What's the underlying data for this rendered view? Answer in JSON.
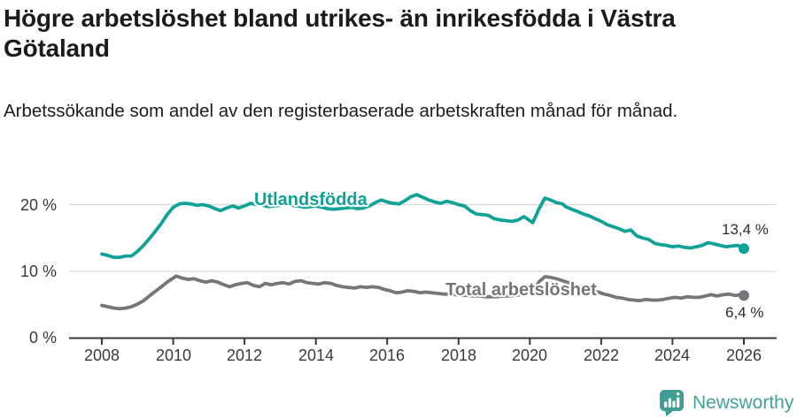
{
  "header": {
    "title": "Högre arbetslöshet bland utrikes- än inrikesfödda i Västra Götaland",
    "subtitle": "Arbetssökande som andel av den registerbaserade arbetskraften månad för månad."
  },
  "footer": {
    "brand": "Newsworthy",
    "brand_color": "#45a09a",
    "logo_icon": "bar-chart-speech-bubble-icon"
  },
  "chart_data": {
    "type": "line",
    "title": "Högre arbetslöshet bland utrikes- än inrikesfödda i Västra Götaland",
    "subtitle": "Arbetssökande som andel av den registerbaserade arbetskraften månad för månad.",
    "grid": "horizontal-only",
    "legend_position": "inline-labels-on-lines",
    "xlabel": "",
    "ylabel": "",
    "x_range": [
      2008,
      2026
    ],
    "ylim": [
      0,
      22
    ],
    "x_axis": {
      "ticks": [
        2008,
        2010,
        2012,
        2014,
        2016,
        2018,
        2020,
        2022,
        2024,
        2026
      ]
    },
    "y_axis": {
      "ticks": [
        {
          "label": "0 %",
          "value": 0
        },
        {
          "label": "10 %",
          "value": 10
        },
        {
          "label": "20 %",
          "value": 20
        }
      ]
    },
    "series": [
      {
        "name": "Utlandsfödda",
        "color": "#10a296",
        "end_label": "13,4 %",
        "end_value": 13.4,
        "points": [
          [
            2008.0,
            12.6
          ],
          [
            2008.17,
            12.4
          ],
          [
            2008.33,
            12.1
          ],
          [
            2008.5,
            12.1
          ],
          [
            2008.67,
            12.3
          ],
          [
            2008.83,
            12.3
          ],
          [
            2009.0,
            13.0
          ],
          [
            2009.17,
            13.9
          ],
          [
            2009.33,
            14.9
          ],
          [
            2009.5,
            16.0
          ],
          [
            2009.67,
            17.2
          ],
          [
            2009.83,
            18.5
          ],
          [
            2010.0,
            19.6
          ],
          [
            2010.17,
            20.1
          ],
          [
            2010.33,
            20.2
          ],
          [
            2010.5,
            20.1
          ],
          [
            2010.67,
            19.9
          ],
          [
            2010.83,
            20.0
          ],
          [
            2011.0,
            19.8
          ],
          [
            2011.17,
            19.4
          ],
          [
            2011.33,
            19.1
          ],
          [
            2011.5,
            19.5
          ],
          [
            2011.67,
            19.8
          ],
          [
            2011.83,
            19.5
          ],
          [
            2012.0,
            19.8
          ],
          [
            2012.17,
            20.2
          ],
          [
            2012.33,
            20.0
          ],
          [
            2012.5,
            19.9
          ],
          [
            2012.67,
            19.7
          ],
          [
            2012.83,
            19.8
          ],
          [
            2013.0,
            19.9
          ],
          [
            2013.17,
            20.1
          ],
          [
            2013.33,
            19.9
          ],
          [
            2013.5,
            19.8
          ],
          [
            2013.67,
            19.6
          ],
          [
            2013.83,
            19.7
          ],
          [
            2014.0,
            19.8
          ],
          [
            2014.17,
            19.6
          ],
          [
            2014.33,
            19.4
          ],
          [
            2014.5,
            19.3
          ],
          [
            2014.67,
            19.4
          ],
          [
            2014.83,
            19.5
          ],
          [
            2015.0,
            19.6
          ],
          [
            2015.17,
            19.4
          ],
          [
            2015.33,
            19.5
          ],
          [
            2015.5,
            19.8
          ],
          [
            2015.67,
            20.3
          ],
          [
            2015.83,
            20.7
          ],
          [
            2016.0,
            20.4
          ],
          [
            2016.17,
            20.2
          ],
          [
            2016.33,
            20.1
          ],
          [
            2016.5,
            20.6
          ],
          [
            2016.67,
            21.2
          ],
          [
            2016.83,
            21.5
          ],
          [
            2017.0,
            21.1
          ],
          [
            2017.17,
            20.7
          ],
          [
            2017.33,
            20.4
          ],
          [
            2017.5,
            20.2
          ],
          [
            2017.67,
            20.5
          ],
          [
            2017.83,
            20.3
          ],
          [
            2018.0,
            20.0
          ],
          [
            2018.17,
            19.8
          ],
          [
            2018.33,
            19.1
          ],
          [
            2018.5,
            18.6
          ],
          [
            2018.67,
            18.5
          ],
          [
            2018.83,
            18.4
          ],
          [
            2019.0,
            17.9
          ],
          [
            2019.17,
            17.7
          ],
          [
            2019.33,
            17.6
          ],
          [
            2019.5,
            17.5
          ],
          [
            2019.67,
            17.7
          ],
          [
            2019.83,
            18.2
          ],
          [
            2020.0,
            17.6
          ],
          [
            2020.08,
            17.3
          ],
          [
            2020.25,
            19.3
          ],
          [
            2020.42,
            21.0
          ],
          [
            2020.58,
            20.7
          ],
          [
            2020.75,
            20.3
          ],
          [
            2020.92,
            20.1
          ],
          [
            2021.0,
            19.7
          ],
          [
            2021.17,
            19.3
          ],
          [
            2021.33,
            19.0
          ],
          [
            2021.5,
            18.6
          ],
          [
            2021.67,
            18.3
          ],
          [
            2021.83,
            17.9
          ],
          [
            2022.0,
            17.5
          ],
          [
            2022.17,
            17.0
          ],
          [
            2022.33,
            16.7
          ],
          [
            2022.5,
            16.4
          ],
          [
            2022.67,
            16.0
          ],
          [
            2022.83,
            16.2
          ],
          [
            2023.0,
            15.3
          ],
          [
            2023.17,
            15.0
          ],
          [
            2023.33,
            14.8
          ],
          [
            2023.5,
            14.2
          ],
          [
            2023.67,
            14.0
          ],
          [
            2023.83,
            13.9
          ],
          [
            2024.0,
            13.7
          ],
          [
            2024.17,
            13.8
          ],
          [
            2024.33,
            13.6
          ],
          [
            2024.5,
            13.5
          ],
          [
            2024.67,
            13.7
          ],
          [
            2024.83,
            13.9
          ],
          [
            2025.0,
            14.3
          ],
          [
            2025.17,
            14.1
          ],
          [
            2025.33,
            13.9
          ],
          [
            2025.5,
            13.7
          ],
          [
            2025.67,
            13.8
          ],
          [
            2025.83,
            13.9
          ],
          [
            2026.0,
            13.4
          ]
        ]
      },
      {
        "name": "Total arbetslöshet",
        "color": "#76767a",
        "end_label": "6,4 %",
        "end_value": 6.4,
        "points": [
          [
            2008.0,
            4.9
          ],
          [
            2008.17,
            4.7
          ],
          [
            2008.33,
            4.5
          ],
          [
            2008.5,
            4.4
          ],
          [
            2008.67,
            4.5
          ],
          [
            2008.83,
            4.7
          ],
          [
            2009.0,
            5.1
          ],
          [
            2009.17,
            5.6
          ],
          [
            2009.33,
            6.3
          ],
          [
            2009.5,
            7.0
          ],
          [
            2009.67,
            7.7
          ],
          [
            2009.83,
            8.4
          ],
          [
            2010.0,
            9.0
          ],
          [
            2010.08,
            9.3
          ],
          [
            2010.25,
            9.0
          ],
          [
            2010.42,
            8.8
          ],
          [
            2010.58,
            8.9
          ],
          [
            2010.75,
            8.6
          ],
          [
            2010.92,
            8.4
          ],
          [
            2011.08,
            8.6
          ],
          [
            2011.25,
            8.4
          ],
          [
            2011.42,
            8.0
          ],
          [
            2011.58,
            7.7
          ],
          [
            2011.75,
            8.0
          ],
          [
            2011.92,
            8.2
          ],
          [
            2012.08,
            8.3
          ],
          [
            2012.25,
            7.9
          ],
          [
            2012.42,
            7.7
          ],
          [
            2012.58,
            8.2
          ],
          [
            2012.75,
            8.0
          ],
          [
            2012.92,
            8.2
          ],
          [
            2013.08,
            8.3
          ],
          [
            2013.25,
            8.1
          ],
          [
            2013.42,
            8.5
          ],
          [
            2013.58,
            8.6
          ],
          [
            2013.75,
            8.3
          ],
          [
            2013.92,
            8.2
          ],
          [
            2014.08,
            8.1
          ],
          [
            2014.25,
            8.3
          ],
          [
            2014.42,
            8.2
          ],
          [
            2014.58,
            7.9
          ],
          [
            2014.75,
            7.7
          ],
          [
            2014.92,
            7.6
          ],
          [
            2015.08,
            7.5
          ],
          [
            2015.25,
            7.7
          ],
          [
            2015.42,
            7.6
          ],
          [
            2015.58,
            7.7
          ],
          [
            2015.75,
            7.6
          ],
          [
            2015.92,
            7.3
          ],
          [
            2016.08,
            7.1
          ],
          [
            2016.25,
            6.8
          ],
          [
            2016.42,
            6.9
          ],
          [
            2016.58,
            7.1
          ],
          [
            2016.75,
            7.0
          ],
          [
            2016.92,
            6.8
          ],
          [
            2017.08,
            6.9
          ],
          [
            2017.25,
            6.8
          ],
          [
            2017.42,
            6.7
          ],
          [
            2017.58,
            6.6
          ],
          [
            2017.75,
            6.6
          ],
          [
            2017.92,
            6.5
          ],
          [
            2018.08,
            6.4
          ],
          [
            2018.25,
            6.4
          ],
          [
            2018.42,
            6.3
          ],
          [
            2018.58,
            6.3
          ],
          [
            2018.75,
            6.2
          ],
          [
            2018.92,
            6.2
          ],
          [
            2019.08,
            6.2
          ],
          [
            2019.25,
            6.3
          ],
          [
            2019.42,
            6.3
          ],
          [
            2019.58,
            6.4
          ],
          [
            2019.75,
            6.5
          ],
          [
            2019.92,
            6.6
          ],
          [
            2020.08,
            7.0
          ],
          [
            2020.25,
            8.4
          ],
          [
            2020.42,
            9.2
          ],
          [
            2020.58,
            9.1
          ],
          [
            2020.75,
            8.9
          ],
          [
            2020.92,
            8.6
          ],
          [
            2021.08,
            8.3
          ],
          [
            2021.25,
            8.0
          ],
          [
            2021.42,
            7.7
          ],
          [
            2021.58,
            7.4
          ],
          [
            2021.75,
            7.2
          ],
          [
            2021.92,
            6.9
          ],
          [
            2022.08,
            6.6
          ],
          [
            2022.25,
            6.4
          ],
          [
            2022.42,
            6.1
          ],
          [
            2022.58,
            6.0
          ],
          [
            2022.75,
            5.8
          ],
          [
            2022.92,
            5.7
          ],
          [
            2023.08,
            5.6
          ],
          [
            2023.25,
            5.8
          ],
          [
            2023.42,
            5.7
          ],
          [
            2023.58,
            5.7
          ],
          [
            2023.75,
            5.8
          ],
          [
            2023.92,
            6.0
          ],
          [
            2024.08,
            6.1
          ],
          [
            2024.25,
            6.0
          ],
          [
            2024.42,
            6.2
          ],
          [
            2024.58,
            6.1
          ],
          [
            2024.75,
            6.1
          ],
          [
            2024.92,
            6.3
          ],
          [
            2025.08,
            6.5
          ],
          [
            2025.25,
            6.3
          ],
          [
            2025.42,
            6.5
          ],
          [
            2025.58,
            6.6
          ],
          [
            2025.75,
            6.4
          ],
          [
            2025.92,
            6.5
          ],
          [
            2026.0,
            6.4
          ]
        ]
      }
    ],
    "colors": {
      "accent_teal": "#10a296",
      "line_gray": "#76767a",
      "grid": "#d9d9d9",
      "axis": "#3a3a3a"
    }
  }
}
